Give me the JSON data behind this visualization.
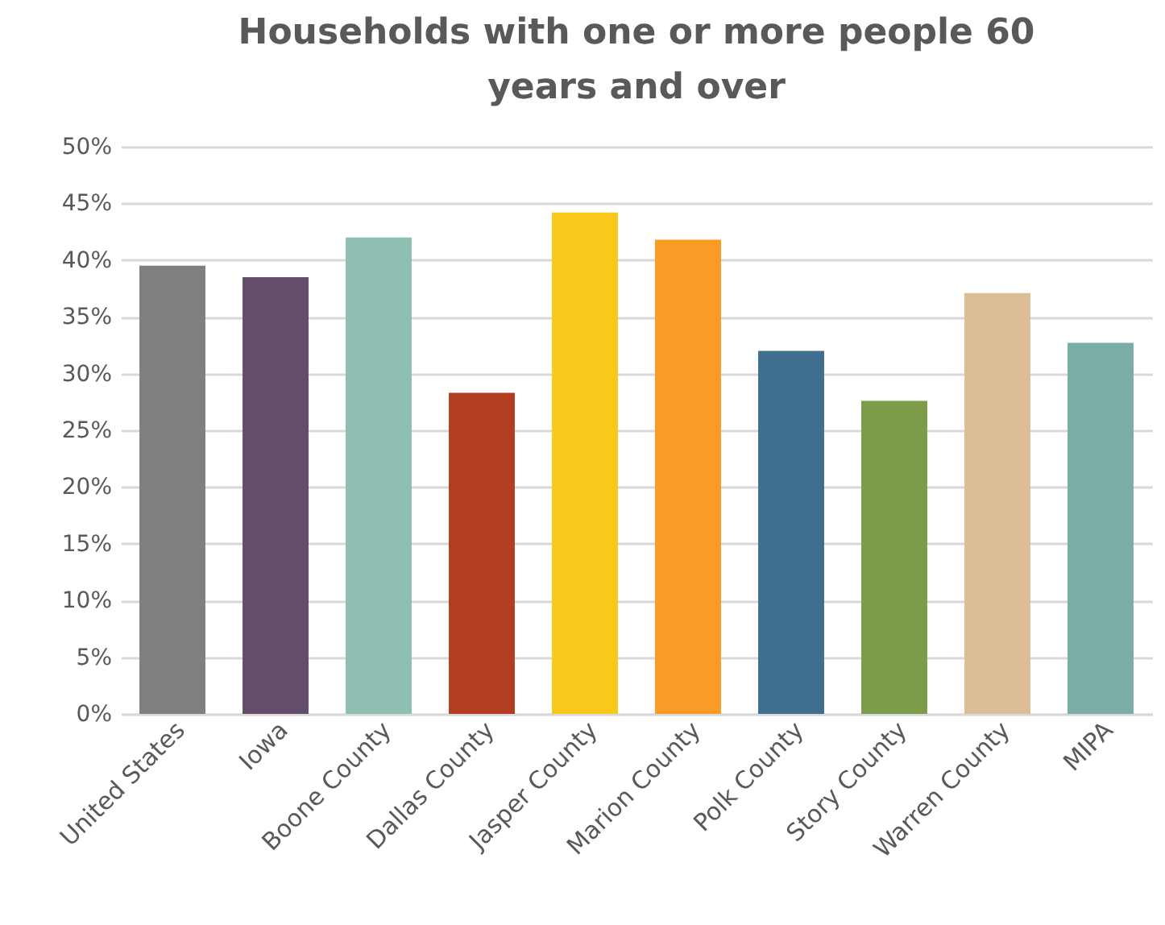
{
  "chart_data": {
    "type": "bar",
    "title": [
      "Households with one or more people 60",
      "years and over"
    ],
    "categories": [
      "United States",
      "Iowa",
      "Boone County",
      "Dallas County",
      "Jasper County",
      "Marion County",
      "Polk County",
      "Story County",
      "Warren County",
      "MIPA"
    ],
    "values": [
      39.5,
      38.5,
      42.0,
      28.3,
      44.2,
      41.8,
      32.0,
      27.6,
      37.1,
      32.7
    ],
    "colors": [
      "#7f7f7f",
      "#634c6c",
      "#8fbfb2",
      "#b33d21",
      "#f9c81a",
      "#f99b25",
      "#406e8e",
      "#7c9c4a",
      "#dcbd96",
      "#79ada5"
    ],
    "ylim": [
      0,
      50
    ],
    "yticks": [
      {
        "value": 0,
        "label": "0%"
      },
      {
        "value": 5,
        "label": "5%"
      },
      {
        "value": 10,
        "label": "10%"
      },
      {
        "value": 15,
        "label": "15%"
      },
      {
        "value": 20,
        "label": "20%"
      },
      {
        "value": 25,
        "label": "25%"
      },
      {
        "value": 30,
        "label": "30%"
      },
      {
        "value": 35,
        "label": "35%"
      },
      {
        "value": 40,
        "label": "40%"
      },
      {
        "value": 45,
        "label": "45%"
      },
      {
        "value": 50,
        "label": "50%"
      }
    ],
    "grid": "y"
  }
}
